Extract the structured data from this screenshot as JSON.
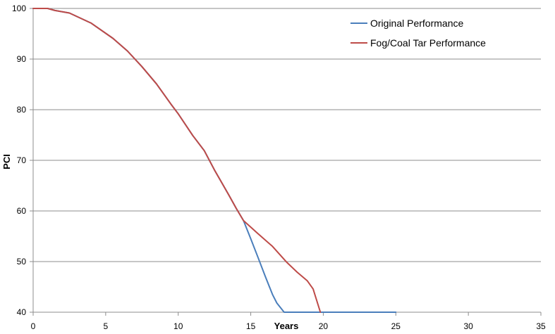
{
  "chart_data": {
    "type": "line",
    "title": "",
    "xlabel": "Years",
    "ylabel": "PCI",
    "xlim": [
      0,
      35
    ],
    "ylim": [
      40,
      100
    ],
    "x_ticks": [
      0,
      5,
      10,
      15,
      20,
      25,
      30,
      35
    ],
    "y_ticks": [
      40,
      50,
      60,
      70,
      80,
      90,
      100
    ],
    "grid": "horizontal",
    "legend_position": "top-right",
    "series": [
      {
        "name": "Original Performance",
        "color": "#4a7ebb",
        "points": [
          [
            0,
            100
          ],
          [
            1,
            100
          ],
          [
            1.5,
            99.6
          ],
          [
            2.5,
            99.1
          ],
          [
            4,
            97.1
          ],
          [
            5.5,
            94.1
          ],
          [
            6.5,
            91.6
          ],
          [
            7.5,
            88.5
          ],
          [
            8.5,
            85.1
          ],
          [
            9.5,
            81.1
          ],
          [
            10,
            79.2
          ],
          [
            11,
            74.9
          ],
          [
            11.8,
            71.9
          ],
          [
            12.5,
            68.1
          ],
          [
            13.5,
            63.1
          ],
          [
            14,
            60.5
          ],
          [
            14.5,
            58.1
          ],
          [
            15,
            54.5
          ],
          [
            15.5,
            50.8
          ],
          [
            16,
            47.1
          ],
          [
            16.5,
            43.5
          ],
          [
            16.8,
            41.8
          ],
          [
            17.3,
            40
          ],
          [
            25,
            40
          ]
        ]
      },
      {
        "name": "Fog/Coal Tar Performance",
        "color": "#be4b48",
        "points": [
          [
            0,
            100
          ],
          [
            1,
            100
          ],
          [
            1.5,
            99.6
          ],
          [
            2.5,
            99.1
          ],
          [
            4,
            97.1
          ],
          [
            5.5,
            94.1
          ],
          [
            6.5,
            91.6
          ],
          [
            7.5,
            88.5
          ],
          [
            8.5,
            85.1
          ],
          [
            9.5,
            81.1
          ],
          [
            10,
            79.2
          ],
          [
            11,
            74.9
          ],
          [
            11.8,
            71.9
          ],
          [
            12.5,
            68.1
          ],
          [
            13.5,
            63.1
          ],
          [
            14,
            60.5
          ],
          [
            14.5,
            58.1
          ],
          [
            15.5,
            55.5
          ],
          [
            16.5,
            53.0
          ],
          [
            17.5,
            49.8
          ],
          [
            18.2,
            47.9
          ],
          [
            18.9,
            46.2
          ],
          [
            19.3,
            44.6
          ],
          [
            19.8,
            40
          ]
        ]
      }
    ]
  }
}
